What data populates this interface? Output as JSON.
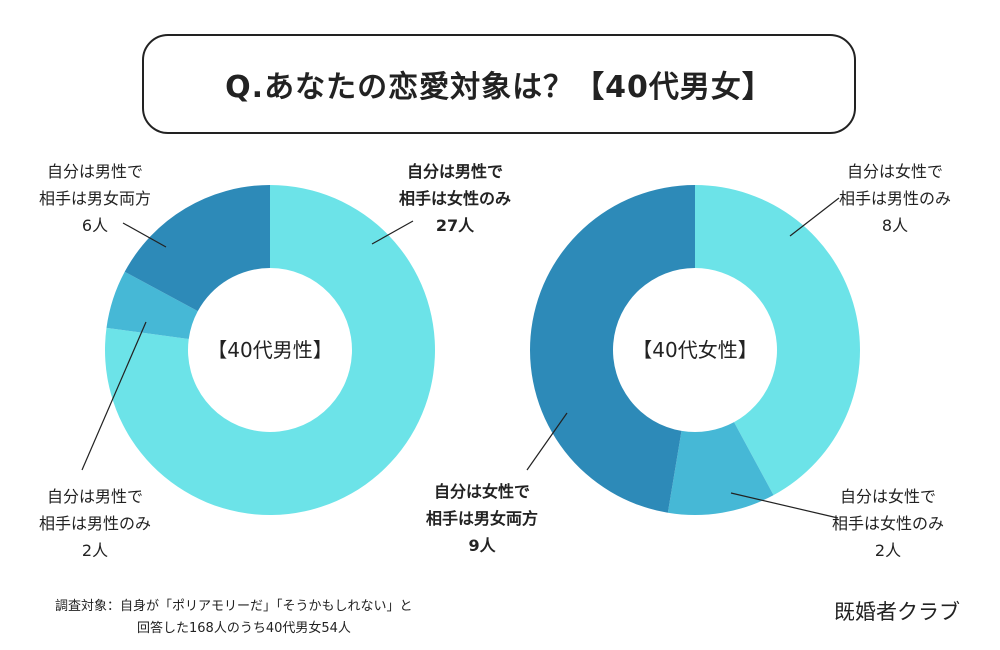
{
  "title": "Q.あなたの恋愛対象は？【40代男女】",
  "chart_data": [
    {
      "type": "pie",
      "center_label": "【40代男性】",
      "slices": [
        {
          "label": [
            "自分は男性で",
            "相手は女性のみ",
            "27人"
          ],
          "value": 27,
          "color": "#6ce3e8",
          "bold": true
        },
        {
          "label": [
            "自分は男性で",
            "相手は男性のみ",
            "2人"
          ],
          "value": 2,
          "color": "#46b8d6",
          "bold": false
        },
        {
          "label": [
            "自分は男性で",
            "相手は男女両方",
            "6人"
          ],
          "value": 6,
          "color": "#2d8ab8",
          "bold": false
        }
      ]
    },
    {
      "type": "pie",
      "center_label": "【40代女性】",
      "slices": [
        {
          "label": [
            "自分は女性で",
            "相手は男性のみ",
            "8人"
          ],
          "value": 8,
          "color": "#6ce3e8",
          "bold": false
        },
        {
          "label": [
            "自分は女性で",
            "相手は女性のみ",
            "2人"
          ],
          "value": 2,
          "color": "#46b8d6",
          "bold": false
        },
        {
          "label": [
            "自分は女性で",
            "相手は男女両方",
            "9人"
          ],
          "value": 9,
          "color": "#2d8ab8",
          "bold": true
        }
      ]
    }
  ],
  "footnote": {
    "line1": "調査対象：自身が「ポリアモリーだ」「そうかもしれない」と",
    "line2": "回答した168人のうち40代男女54人"
  },
  "brand": "既婚者クラブ"
}
